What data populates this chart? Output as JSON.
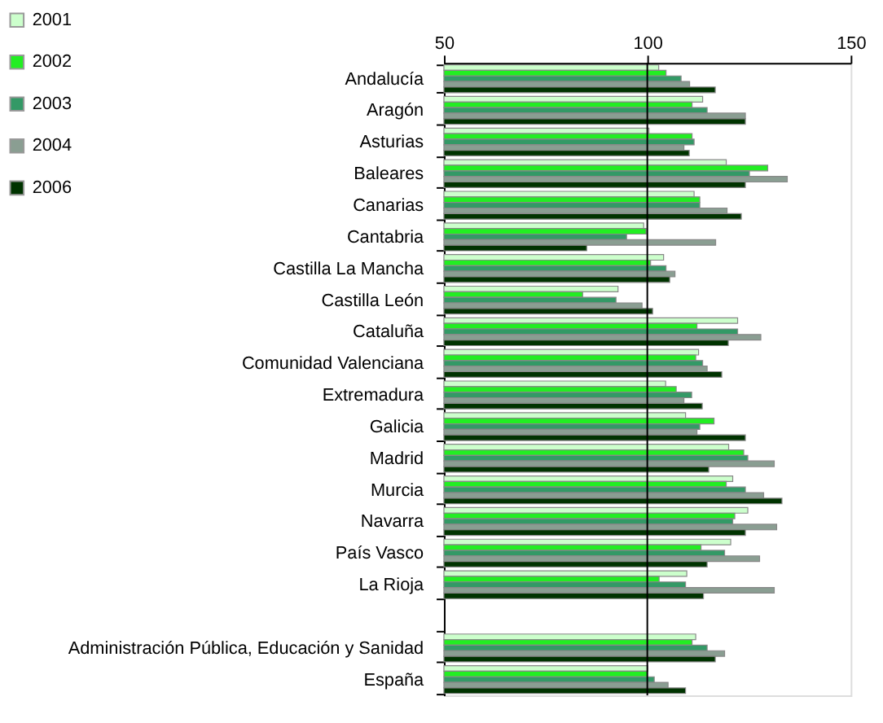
{
  "chart_data": {
    "type": "bar",
    "orientation": "horizontal",
    "categories": [
      "Andalucía",
      "Aragón",
      "Asturias",
      "Baleares",
      "Canarias",
      "Cantabria",
      "Castilla La Mancha",
      "Castilla León",
      "Cataluña",
      "Comunidad Valenciana",
      "Extremadura",
      "Galicia",
      "Madrid",
      "Murcia",
      "Navarra",
      "País Vasco",
      "La Rioja",
      null,
      "Administración Pública, Educación y Sanidad",
      "España"
    ],
    "series": [
      {
        "name": "2001",
        "color": "#ccffcc",
        "values": [
          102.8,
          113.6,
          100.4,
          119.4,
          111.5,
          99.1,
          104.0,
          92.8,
          122.2,
          112.6,
          104.5,
          109.4,
          120.0,
          121.0,
          124.7,
          120.5,
          109.7,
          null,
          111.9,
          100.1
        ]
      },
      {
        "name": "2002",
        "color": "#22ee22",
        "values": [
          104.6,
          111.0,
          111.0,
          129.6,
          112.9,
          99.7,
          100.8,
          84.1,
          112.2,
          111.9,
          107.1,
          116.4,
          123.7,
          119.4,
          121.5,
          113.2,
          102.9,
          null,
          111.0,
          100.0
        ]
      },
      {
        "name": "2003",
        "color": "#339966",
        "values": [
          108.3,
          114.7,
          111.5,
          125.1,
          112.9,
          94.9,
          104.6,
          92.3,
          122.2,
          113.6,
          110.9,
          112.9,
          124.7,
          124.1,
          121.0,
          119.0,
          109.4,
          null,
          114.7,
          101.7
        ]
      },
      {
        "name": "2004",
        "color": "#8a9e92",
        "values": [
          110.4,
          124.1,
          109.0,
          134.4,
          119.6,
          116.8,
          106.8,
          98.7,
          127.9,
          114.7,
          109.0,
          112.2,
          131.2,
          128.6,
          131.8,
          127.6,
          131.2,
          null,
          119.0,
          105.1
        ]
      },
      {
        "name": "2006",
        "color": "#003300",
        "values": [
          116.7,
          124.1,
          110.3,
          124.1,
          123.1,
          85.1,
          105.5,
          101.3,
          119.9,
          118.3,
          113.5,
          124.1,
          115.1,
          133.1,
          124.1,
          114.7,
          113.8,
          null,
          116.7,
          109.4
        ]
      }
    ],
    "xlim": [
      50,
      150
    ],
    "xticks": [
      50,
      100,
      150
    ],
    "ref_lines": [
      {
        "axis": "x",
        "value": 100,
        "color": "#000000"
      }
    ],
    "grid": false,
    "legend": "top left"
  }
}
